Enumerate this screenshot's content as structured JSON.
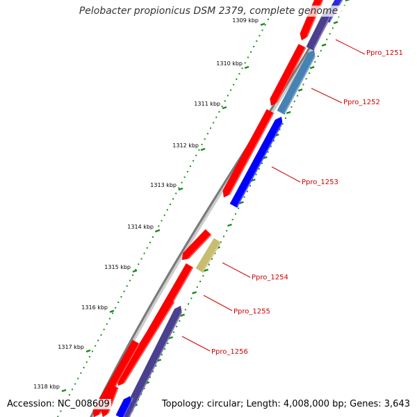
{
  "title": "Pelobacter propionicus DSM 2379, complete genome",
  "accession_text": "Accession: NC_008609",
  "summary_text": "Topology: circular; Length: 4,008,000 bp; Genes: 3,643",
  "colors": {
    "forward_gene": "#ff0000",
    "reverse_gene": "#0000ff",
    "reverse_gene_alt": "#4b3f8f",
    "steel_gene": "#4682b4",
    "olive_gene": "#c8bd6e",
    "tick": "#1a8a1a",
    "backbone": "#888888",
    "label": "#cc0000"
  },
  "kbp_ticks": [
    "1309 kbp",
    "1310 kbp",
    "1311 kbp",
    "1312 kbp",
    "1313 kbp",
    "1314 kbp",
    "1315 kbp",
    "1316 kbp",
    "1317 kbp",
    "1318 kbp"
  ],
  "genes": [
    {
      "label": "Ppro_1251"
    },
    {
      "label": "Ppro_1252"
    },
    {
      "label": "Ppro_1253"
    },
    {
      "label": "Ppro_1254"
    },
    {
      "label": "Ppro_1255"
    },
    {
      "label": "Ppro_1256"
    }
  ]
}
